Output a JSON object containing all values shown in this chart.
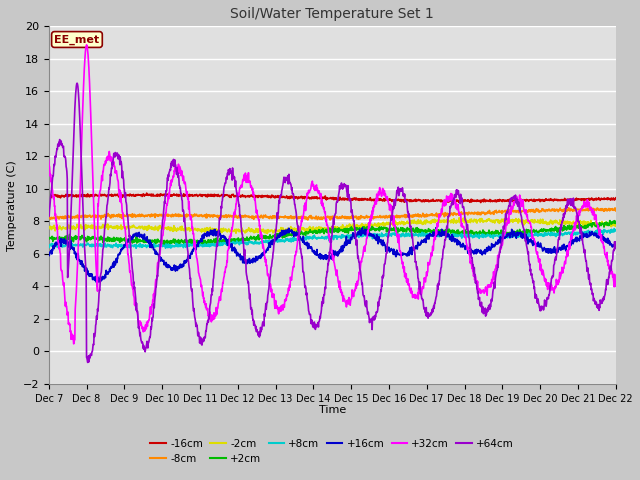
{
  "title": "Soil/Water Temperature Set 1",
  "xlabel": "Time",
  "ylabel": "Temperature (C)",
  "ylim": [
    -2,
    20
  ],
  "yticks": [
    -2,
    0,
    2,
    4,
    6,
    8,
    10,
    12,
    14,
    16,
    18,
    20
  ],
  "x_labels": [
    "Dec 7",
    "Dec 8",
    "Dec 9",
    "Dec 10",
    "Dec 11",
    "Dec 12",
    "Dec 13",
    "Dec 14",
    "Dec 15",
    "Dec 16",
    "Dec 17",
    "Dec 18",
    "Dec 19",
    "Dec 20",
    "Dec 21",
    "Dec 22"
  ],
  "annotation_text": "EE_met",
  "annotation_bg": "#ffffcc",
  "annotation_border": "#8b0000",
  "annotation_text_color": "#8b0000",
  "series": [
    {
      "label": "-16cm",
      "color": "#cc0000",
      "linewidth": 1.2
    },
    {
      "label": "-8cm",
      "color": "#ff8800",
      "linewidth": 1.2
    },
    {
      "label": "-2cm",
      "color": "#dddd00",
      "linewidth": 1.2
    },
    {
      "label": "+2cm",
      "color": "#00bb00",
      "linewidth": 1.2
    },
    {
      "label": "+8cm",
      "color": "#00cccc",
      "linewidth": 1.2
    },
    {
      "label": "+16cm",
      "color": "#0000cc",
      "linewidth": 1.2
    },
    {
      "label": "+32cm",
      "color": "#ff00ff",
      "linewidth": 1.2
    },
    {
      "label": "+64cm",
      "color": "#9900cc",
      "linewidth": 1.2
    }
  ],
  "fig_bg": "#c8c8c8",
  "plot_bg": "#e0e0e0",
  "grid_color": "#ffffff",
  "n_points": 1500
}
